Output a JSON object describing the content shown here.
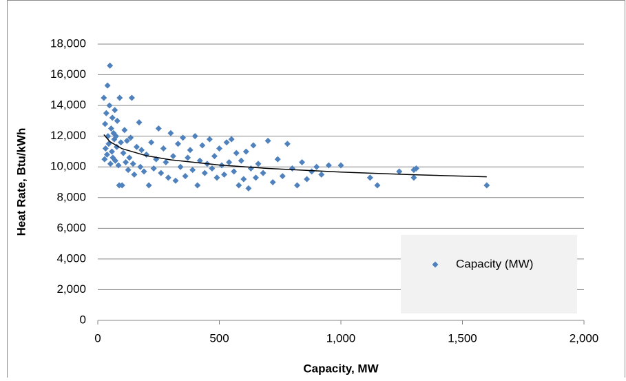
{
  "chart_data": {
    "type": "scatter",
    "xlabel": "Capacity, MW",
    "ylabel": "Heat Rate, Btu/kWh",
    "xlim": [
      0,
      2000
    ],
    "ylim": [
      0,
      18000
    ],
    "xticks": [
      0,
      500,
      {
        "value": 1000,
        "label": "1,000"
      },
      {
        "value": 1500,
        "label": "1,500"
      },
      {
        "value": 2000,
        "label": "2,000"
      }
    ],
    "yticks": [
      0,
      {
        "value": 2000,
        "label": "2,000"
      },
      {
        "value": 4000,
        "label": "4,000"
      },
      {
        "value": 6000,
        "label": "6,000"
      },
      {
        "value": 8000,
        "label": "8,000"
      },
      {
        "value": 10000,
        "label": "10,000"
      },
      {
        "value": 12000,
        "label": "12,000"
      },
      {
        "value": 14000,
        "label": "14,000"
      },
      {
        "value": 16000,
        "label": "16,000"
      },
      {
        "value": 18000,
        "label": "18,000"
      }
    ],
    "grid": true,
    "legend": "lower right",
    "series": [
      {
        "name": "Capacity (MW)",
        "color": "#4f81bd",
        "x": [
          25,
          28,
          30,
          32,
          35,
          38,
          40,
          42,
          45,
          48,
          50,
          52,
          55,
          58,
          60,
          62,
          65,
          68,
          70,
          72,
          75,
          78,
          80,
          85,
          88,
          90,
          95,
          100,
          105,
          110,
          115,
          120,
          125,
          130,
          135,
          140,
          145,
          150,
          160,
          170,
          175,
          180,
          190,
          200,
          210,
          220,
          230,
          240,
          250,
          260,
          270,
          280,
          290,
          300,
          310,
          320,
          330,
          340,
          350,
          360,
          370,
          380,
          390,
          400,
          410,
          420,
          430,
          440,
          450,
          460,
          470,
          480,
          490,
          500,
          510,
          520,
          530,
          540,
          550,
          560,
          570,
          580,
          590,
          600,
          610,
          620,
          630,
          640,
          650,
          660,
          680,
          700,
          720,
          740,
          760,
          780,
          800,
          820,
          840,
          860,
          880,
          900,
          920,
          950,
          1000,
          1120,
          1150,
          1240,
          1300,
          1300,
          1310,
          1600
        ],
        "values": [
          14500,
          10500,
          12800,
          11200,
          13500,
          10800,
          15300,
          12000,
          11500,
          14000,
          16600,
          10200,
          12500,
          11000,
          13200,
          10600,
          12200,
          11800,
          13700,
          10400,
          12000,
          11300,
          13000,
          10100,
          8800,
          14500,
          11600,
          8800,
          10900,
          12400,
          10300,
          11700,
          9800,
          10600,
          11900,
          14500,
          10200,
          9500,
          11300,
          12900,
          10000,
          11100,
          9700,
          10800,
          8800,
          11600,
          9900,
          10500,
          12500,
          9600,
          11200,
          10300,
          9300,
          12200,
          10700,
          9100,
          11500,
          10000,
          11900,
          9400,
          10600,
          11100,
          9800,
          12000,
          8800,
          10400,
          11400,
          9600,
          10200,
          11800,
          9900,
          10700,
          9300,
          11200,
          10100,
          9500,
          11600,
          10300,
          11800,
          9700,
          10900,
          8800,
          10400,
          9200,
          11000,
          8600,
          9900,
          11400,
          9300,
          10200,
          9600,
          11700,
          9000,
          10500,
          9400,
          11500,
          9900,
          8800,
          10300,
          9200,
          9700,
          10000,
          9500,
          10100,
          10100,
          9300,
          8800,
          9700,
          9300,
          9800,
          9900,
          8800
        ]
      }
    ],
    "trendline": {
      "color": "#000000",
      "x": [
        25,
        50,
        100,
        200,
        300,
        500,
        700,
        1000,
        1300,
        1600
      ],
      "values": [
        12100,
        11642,
        11184,
        10726,
        10458,
        10120,
        9897,
        9662,
        9488,
        9351
      ]
    }
  }
}
